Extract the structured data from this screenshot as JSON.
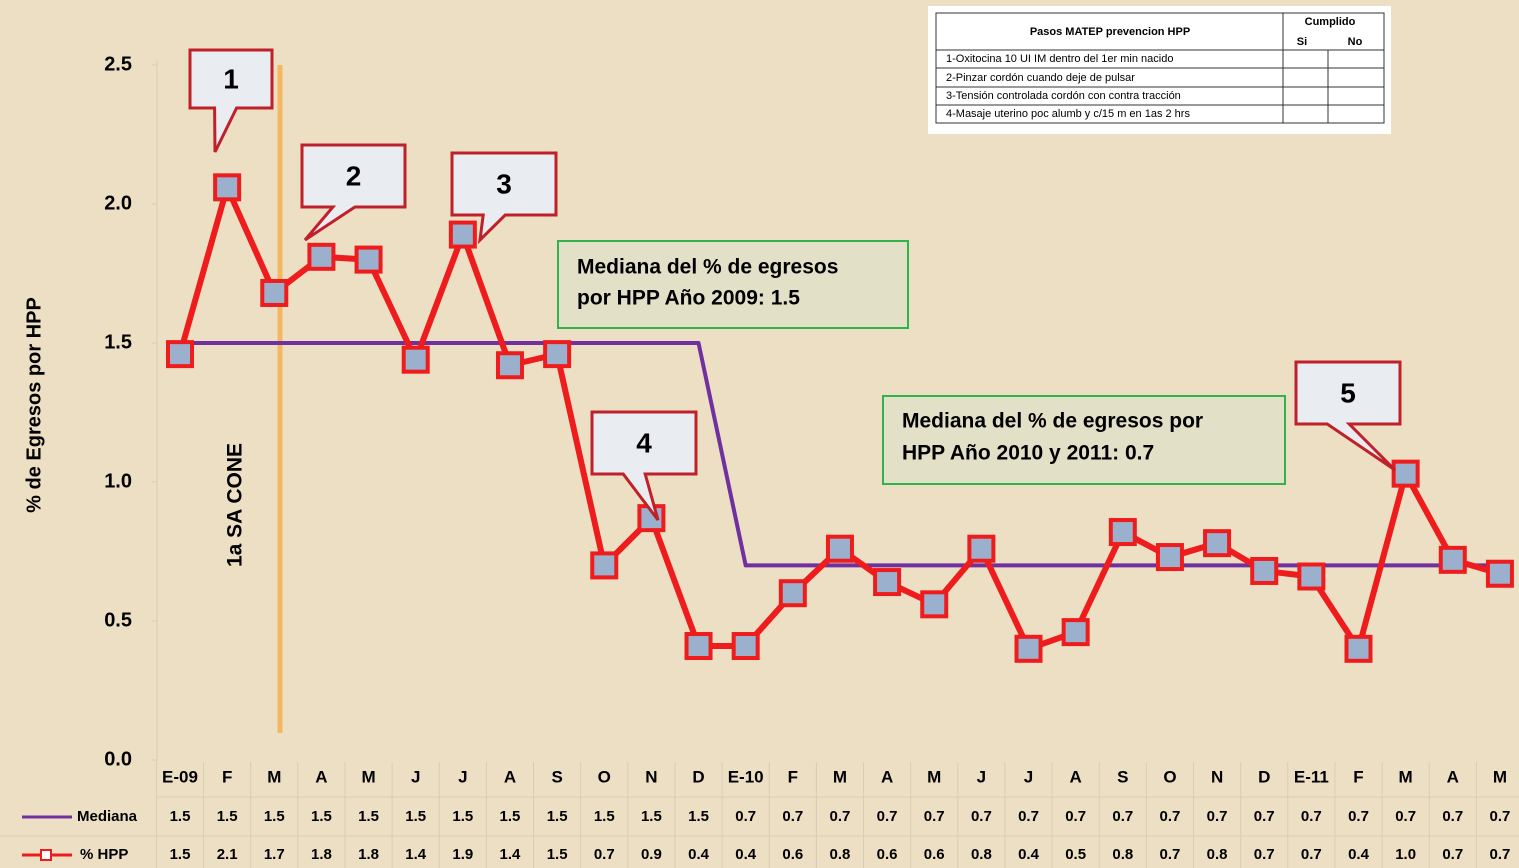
{
  "chart_data": {
    "type": "line",
    "ylabel": "% de Egresos por HPP",
    "categories": [
      "E-09",
      "F",
      "M",
      "A",
      "M",
      "J",
      "J",
      "A",
      "S",
      "O",
      "N",
      "D",
      "E-10",
      "F",
      "M",
      "A",
      "M",
      "J",
      "J",
      "A",
      "S",
      "O",
      "N",
      "D",
      "E-11",
      "F",
      "M",
      "A",
      "M"
    ],
    "series": [
      {
        "name": "Mediana",
        "color": "#7030a0",
        "values": [
          1.5,
          1.5,
          1.5,
          1.5,
          1.5,
          1.5,
          1.5,
          1.5,
          1.5,
          1.5,
          1.5,
          1.5,
          0.7,
          0.7,
          0.7,
          0.7,
          0.7,
          0.7,
          0.7,
          0.7,
          0.7,
          0.7,
          0.7,
          0.7,
          0.7,
          0.7,
          0.7,
          0.7,
          0.7
        ]
      },
      {
        "name": "% HPP",
        "color": "#ee1c1c",
        "marker_color": "#9bb0cc",
        "values": [
          1.46,
          2.06,
          1.68,
          1.81,
          1.8,
          1.44,
          1.89,
          1.42,
          1.46,
          0.7,
          0.87,
          0.41,
          0.41,
          0.6,
          0.76,
          0.64,
          0.56,
          0.76,
          0.4,
          0.46,
          0.82,
          0.73,
          0.78,
          0.68,
          0.66,
          0.4,
          1.03,
          0.72,
          0.67
        ],
        "value_labels": [
          "1.5",
          "2.1",
          "1.7",
          "1.8",
          "1.8",
          "1.4",
          "1.9",
          "1.4",
          "1.5",
          "0.7",
          "0.9",
          "0.4",
          "0.4",
          "0.6",
          "0.8",
          "0.6",
          "0.6",
          "0.8",
          "0.4",
          "0.5",
          "0.8",
          "0.7",
          "0.8",
          "0.7",
          "0.7",
          "0.4",
          "1.0",
          "0.7",
          "0.7"
        ]
      }
    ],
    "ylim": [
      0,
      2.5
    ],
    "yticks": [
      {
        "value": 0,
        "label": "0.0"
      },
      0.5,
      {
        "value": 1,
        "label": "1.0"
      },
      1.5,
      {
        "value": 2,
        "label": "2.0"
      },
      2.5
    ],
    "callouts": [
      "1",
      "2",
      "3",
      "4",
      "5"
    ],
    "vertical_annotation": "1a SA CONE",
    "median_notes": [
      [
        "Mediana del % de egresos",
        "por HPP Año 2009: 1.5"
      ],
      [
        "Mediana del % de egresos por",
        "HPP Año 2010 y 2011:  0.7"
      ]
    ]
  },
  "steps_table": {
    "title": "Pasos MATEP prevencion HPP",
    "group_header": "Cumplido",
    "columns": [
      "Si",
      "No"
    ],
    "rows": [
      "1-Oxitocina 10 UI IM dentro del 1er min nacido",
      "2-Pinzar cordón cuando deje de pulsar",
      "3-Tensión controlada cordón con contra tracción",
      "4-Masaje uterino poc alumb y c/15 m en 1as 2 hrs"
    ]
  }
}
